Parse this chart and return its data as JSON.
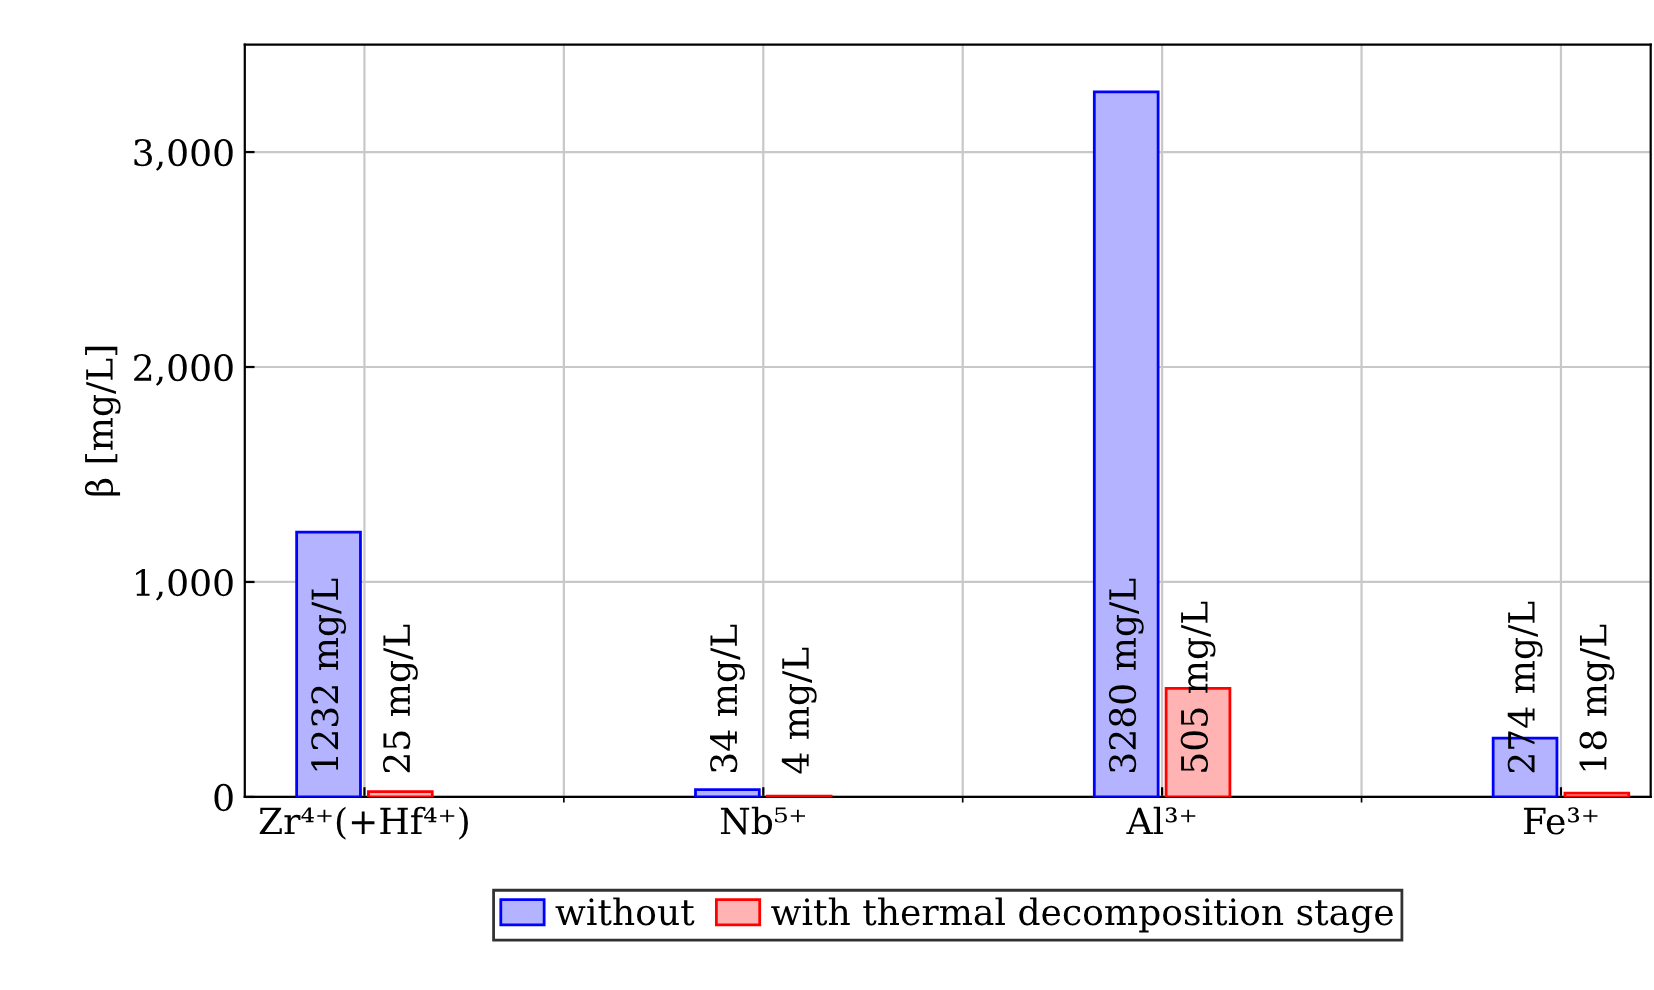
{
  "chart_data": {
    "type": "bar",
    "ylabel": "β [mg/L]",
    "categories": [
      "Zr⁴⁺(+Hf⁴⁺)",
      "Nb⁵⁺",
      "Al³⁺",
      "Fe³⁺"
    ],
    "series": [
      {
        "name": "without",
        "color": "#b3b3ff",
        "values": [
          1232,
          34,
          3280,
          274
        ],
        "value_labels": [
          "1232 mg/L",
          "34 mg/L",
          "3280 mg/L",
          "274 mg/L"
        ]
      },
      {
        "name": "with thermal decomposition stage",
        "color": "#ffb3b3",
        "values": [
          25,
          4,
          505,
          18
        ],
        "value_labels": [
          "25 mg/L",
          "4 mg/L",
          "505 mg/L",
          "18 mg/L"
        ]
      }
    ],
    "ylim": [
      0,
      3500
    ],
    "yticks": [
      0,
      {
        "value": 1000,
        "label": "1,000"
      },
      {
        "value": 2000,
        "label": "2,000"
      },
      {
        "value": 3000,
        "label": "3,000"
      }
    ],
    "grid": true,
    "legend": "bottom"
  }
}
